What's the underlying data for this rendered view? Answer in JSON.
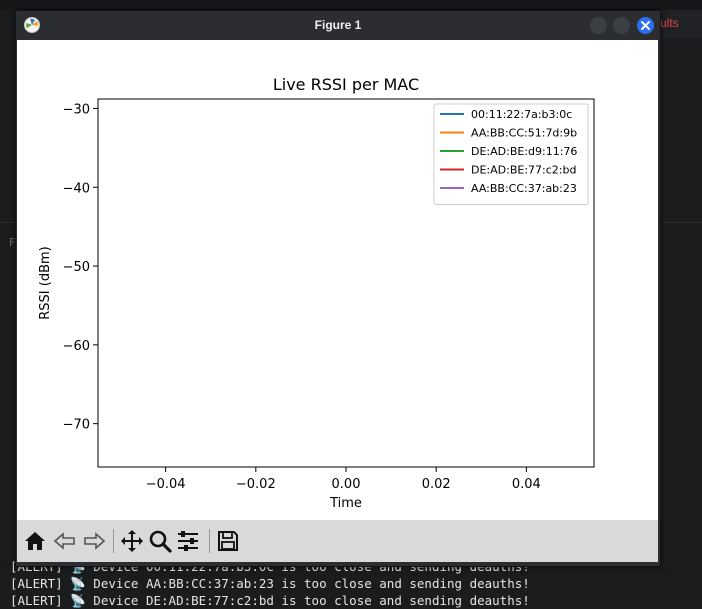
{
  "background": {
    "terminal_lines": [
      "[ALERT] 📡 Device 00:11:22:7a:b3:0c is too close and sending deauths!",
      "[ALERT] 📡 Device AA:BB:CC:37:ab:23 is too close and sending deauths!",
      "[ALERT] 📡 Device DE:AD:BE:77:c2:bd is too close and sending deauths!"
    ],
    "side_tab_text": "ults",
    "left_fragment": "F"
  },
  "window": {
    "title": "Figure 1",
    "buttons": [
      "minimize",
      "maximize",
      "close"
    ]
  },
  "toolbar": {
    "icons": [
      "home-icon",
      "back-icon",
      "forward-icon",
      "pan-icon",
      "zoom-icon",
      "configure-subplots-icon",
      "save-icon"
    ]
  },
  "chart_data": {
    "type": "line",
    "title": "Live RSSI per MAC",
    "xlabel": "Time",
    "ylabel": "RSSI (dBm)",
    "xlim": [
      -0.055,
      0.055
    ],
    "ylim": [
      -75.5,
      -28.8
    ],
    "x_ticks": [
      -0.04,
      -0.02,
      0.0,
      0.02,
      0.04
    ],
    "x_tick_labels": [
      "−0.04",
      "−0.02",
      "0.00",
      "0.02",
      "0.04"
    ],
    "y_ticks": [
      -30,
      -40,
      -50,
      -60,
      -70
    ],
    "y_tick_labels": [
      "−30",
      "−40",
      "−50",
      "−60",
      "−70"
    ],
    "grid": false,
    "legend_position": "top-right",
    "series": [
      {
        "name": "00:11:22:7a:b3:0c",
        "color": "#1f77b4",
        "x": [],
        "y": []
      },
      {
        "name": "AA:BB:CC:51:7d:9b",
        "color": "#ff7f0e",
        "x": [],
        "y": []
      },
      {
        "name": "DE:AD:BE:d9:11:76",
        "color": "#2ca02c",
        "x": [],
        "y": []
      },
      {
        "name": "DE:AD:BE:77:c2:bd",
        "color": "#d62728",
        "x": [],
        "y": []
      },
      {
        "name": "AA:BB:CC:37:ab:23",
        "color": "#9467bd",
        "x": [],
        "y": []
      }
    ]
  }
}
